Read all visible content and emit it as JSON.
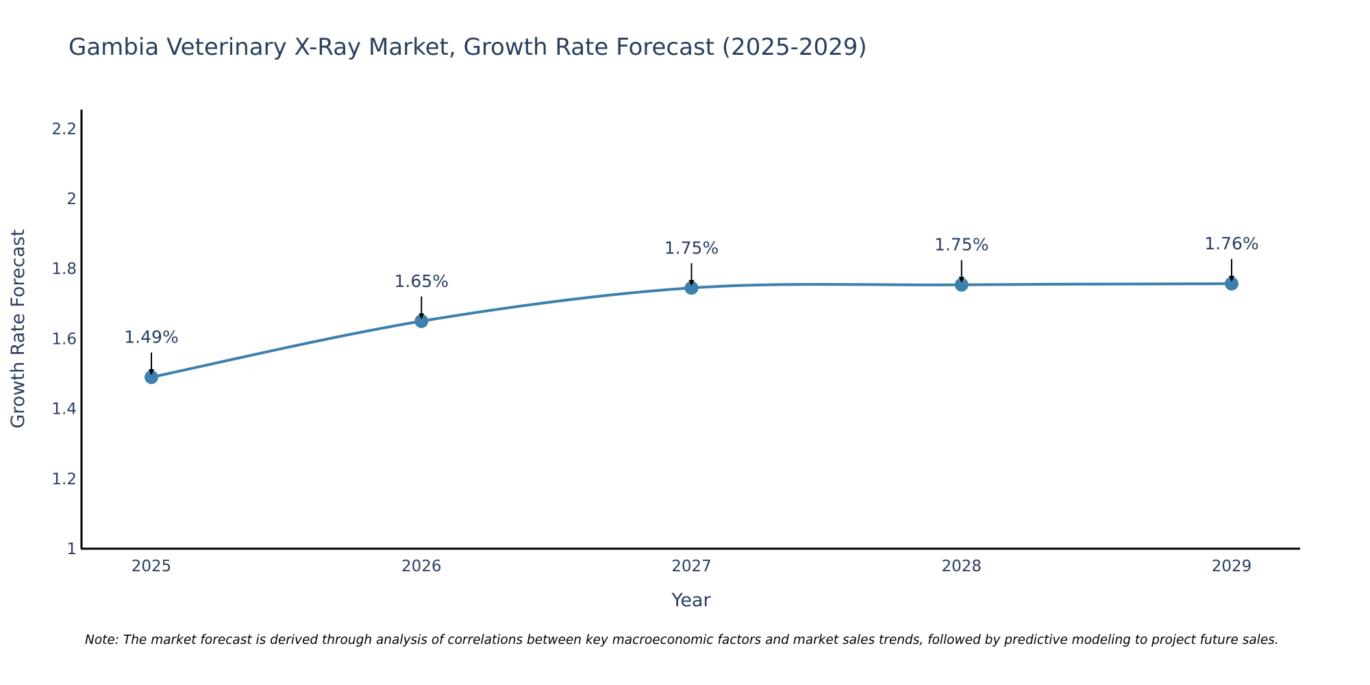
{
  "chart_data": {
    "type": "line",
    "title": "Gambia Veterinary X-Ray Market, Growth Rate Forecast (2025-2029)",
    "xlabel": "Year",
    "ylabel": "Growth Rate Forecast",
    "categories": [
      "2025",
      "2026",
      "2027",
      "2028",
      "2029"
    ],
    "series": [
      {
        "name": "Growth Rate Forecast",
        "values": [
          1.49,
          1.65,
          1.745,
          1.754,
          1.757
        ],
        "labels": [
          "1.49%",
          "1.65%",
          "1.75%",
          "1.75%",
          "1.76%"
        ]
      }
    ],
    "ylim": [
      1.0,
      2.25
    ],
    "yticks": [
      1,
      1.2,
      1.4,
      1.6,
      1.8,
      2,
      2.2
    ],
    "ytick_labels": [
      "1",
      "1.2",
      "1.4",
      "1.6",
      "1.8",
      "2",
      "2.2"
    ],
    "line_color": "#3d7fad",
    "grid": false,
    "note": "Note: The market forecast is derived through analysis of correlations between key macroeconomic factors and market sales trends, followed by predictive modeling to project future sales."
  }
}
